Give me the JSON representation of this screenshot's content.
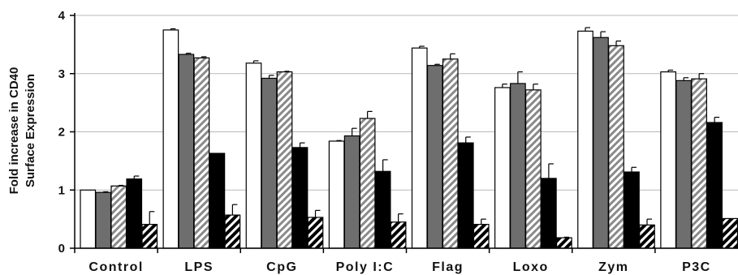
{
  "chart_data": {
    "type": "bar",
    "title": "",
    "xlabel": "",
    "ylabel_lines": [
      "Fold increase in CD40",
      "Surface Expression"
    ],
    "ylim": [
      0,
      4
    ],
    "yticks": [
      "0",
      "1",
      "2",
      "3",
      "4"
    ],
    "grid": true,
    "categories": [
      "Control",
      "LPS",
      "CpG",
      "Poly I:C",
      "Flag",
      "Loxo",
      "Zym",
      "P3C"
    ],
    "series": [
      {
        "fill": "#ffffff",
        "pattern": "solid",
        "values": [
          1.0,
          3.75,
          3.18,
          1.84,
          3.44,
          2.76,
          3.73,
          3.03
        ],
        "errors": [
          0.0,
          0.02,
          0.04,
          0.01,
          0.03,
          0.06,
          0.06,
          0.03
        ]
      },
      {
        "fill": "#6e6e6e",
        "pattern": "solid",
        "values": [
          0.96,
          3.33,
          2.92,
          1.93,
          3.14,
          2.83,
          3.62,
          2.88
        ],
        "errors": [
          0.01,
          0.02,
          0.05,
          0.13,
          0.02,
          0.2,
          0.1,
          0.05
        ]
      },
      {
        "fill": "#ffffff",
        "pattern": "diagonal-gray",
        "values": [
          1.07,
          3.27,
          3.03,
          2.23,
          3.25,
          2.72,
          3.48,
          2.91
        ],
        "errors": [
          0.01,
          0.02,
          0.01,
          0.12,
          0.09,
          0.1,
          0.08,
          0.09
        ]
      },
      {
        "fill": "#000000",
        "pattern": "solid",
        "values": [
          1.19,
          1.63,
          1.73,
          1.32,
          1.81,
          1.2,
          1.31,
          2.16
        ],
        "errors": [
          0.05,
          0.0,
          0.08,
          0.2,
          0.1,
          0.25,
          0.08,
          0.09
        ]
      },
      {
        "fill": "#ffffff",
        "pattern": "diagonal-black",
        "values": [
          0.41,
          0.57,
          0.53,
          0.45,
          0.41,
          0.18,
          0.4,
          0.51
        ],
        "errors": [
          0.22,
          0.18,
          0.12,
          0.14,
          0.09,
          0.01,
          0.1,
          0.0
        ]
      }
    ]
  }
}
